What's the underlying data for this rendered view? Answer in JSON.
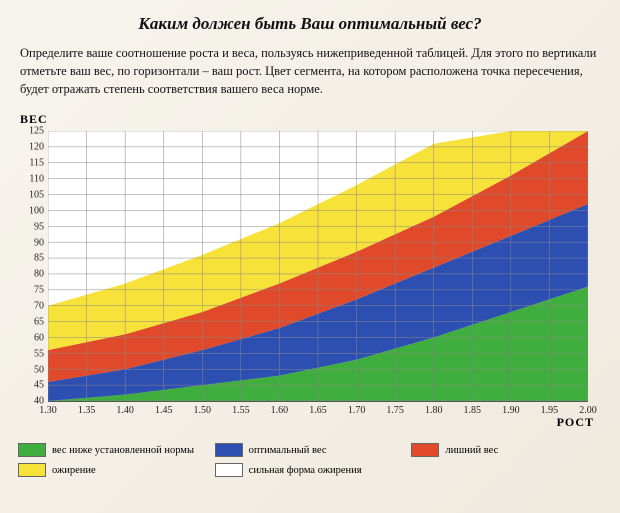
{
  "title": "Каким должен быть Ваш оптимальный вес?",
  "description": "Определите ваше соотношение роста и веса, пользуясь нижеприведенной таблицей. Для этого по вертикали отметьте ваш вес, по горизонтали – ваш рост. Цвет сегмента, на котором расположена точка пересечения, будет отражать степень соответствия вашего веса норме.",
  "chart": {
    "type": "area",
    "y_axis_label": "ВЕС",
    "x_axis_label": "РОСТ",
    "xlim": [
      1.3,
      2.0
    ],
    "ylim": [
      40,
      125
    ],
    "x_ticks": [
      1.3,
      1.35,
      1.4,
      1.45,
      1.5,
      1.55,
      1.6,
      1.65,
      1.7,
      1.75,
      1.8,
      1.85,
      1.9,
      1.95,
      2.0
    ],
    "y_ticks": [
      40,
      45,
      50,
      55,
      60,
      65,
      70,
      75,
      80,
      85,
      90,
      95,
      100,
      105,
      110,
      115,
      120,
      125
    ],
    "grid_color": "#888888",
    "background_color": "#ffffff",
    "tick_fontsize": 10,
    "label_fontsize": 12,
    "bands": [
      {
        "id": "underweight",
        "color": "#3fae3f",
        "x": [
          1.3,
          1.4,
          1.5,
          1.6,
          1.7,
          1.8,
          1.9,
          2.0
        ],
        "y_top": [
          40,
          42,
          45,
          48,
          53,
          60,
          68,
          76
        ]
      },
      {
        "id": "optimal",
        "color": "#2d4fb2",
        "x": [
          1.3,
          1.4,
          1.5,
          1.6,
          1.7,
          1.8,
          1.9,
          2.0
        ],
        "y_top": [
          46,
          50,
          56,
          63,
          72,
          82,
          92,
          102
        ]
      },
      {
        "id": "overweight",
        "color": "#e04a2a",
        "x": [
          1.3,
          1.4,
          1.5,
          1.6,
          1.7,
          1.8,
          1.9,
          2.0
        ],
        "y_top": [
          56,
          61,
          68,
          77,
          87,
          98,
          111,
          125
        ]
      },
      {
        "id": "obesity",
        "color": "#f7e23a",
        "x": [
          1.3,
          1.4,
          1.5,
          1.6,
          1.7,
          1.8,
          1.9,
          2.0
        ],
        "y_top": [
          70,
          77,
          86,
          96,
          108,
          121,
          125,
          125
        ]
      },
      {
        "id": "severe_obesity",
        "color": "#ffffff",
        "x": [
          1.3,
          1.4,
          1.5,
          1.6,
          1.7,
          1.8,
          1.9,
          2.0
        ],
        "y_top": [
          125,
          125,
          125,
          125,
          125,
          125,
          125,
          125
        ]
      }
    ]
  },
  "legend": {
    "items": [
      {
        "color": "#3fae3f",
        "label": "вес ниже установленной нормы"
      },
      {
        "color": "#2d4fb2",
        "label": "оптимальный вес"
      },
      {
        "color": "#e04a2a",
        "label": "лишний вес"
      },
      {
        "color": "#f7e23a",
        "label": "ожирение"
      },
      {
        "color": "#ffffff",
        "label": "сильная форма ожирения"
      }
    ]
  }
}
